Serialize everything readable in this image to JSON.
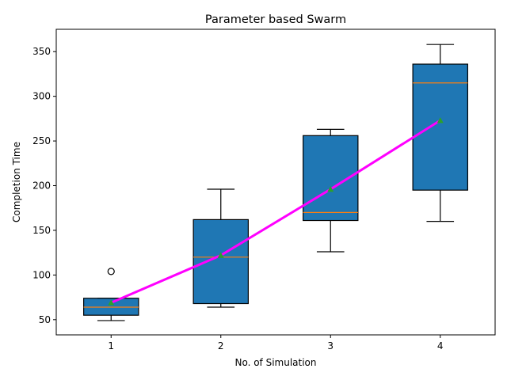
{
  "chart_data": {
    "type": "box",
    "title": "Parameter based Swarm",
    "xlabel": "No. of Simulation",
    "ylabel": "Completion Time",
    "categories": [
      "1",
      "2",
      "3",
      "4"
    ],
    "xlim": [
      0.5,
      4.5
    ],
    "ylim": [
      33,
      375
    ],
    "y_ticks": [
      50,
      100,
      150,
      200,
      250,
      300,
      350
    ],
    "grid": false,
    "legend": "none",
    "boxes": [
      {
        "x": 1,
        "whisker_low": 49,
        "q1": 55,
        "median": 64,
        "q3": 74,
        "whisker_high": 74,
        "mean": 69,
        "outliers": [
          104
        ]
      },
      {
        "x": 2,
        "whisker_low": 64,
        "q1": 68,
        "median": 120,
        "q3": 162,
        "whisker_high": 196,
        "mean": 122,
        "outliers": []
      },
      {
        "x": 3,
        "whisker_low": 126,
        "q1": 161,
        "median": 170,
        "q3": 256,
        "whisker_high": 263,
        "mean": 196,
        "outliers": []
      },
      {
        "x": 4,
        "whisker_low": 160,
        "q1": 195,
        "median": 315,
        "q3": 336,
        "whisker_high": 358,
        "mean": 273,
        "outliers": []
      }
    ],
    "mean_line": {
      "x": [
        1,
        2,
        3,
        4
      ],
      "y": [
        69,
        122,
        196,
        273
      ]
    },
    "colors": {
      "box_fill": "#1f77b4",
      "median": "#ff7f0e",
      "mean_marker": "#2ca02c",
      "mean_line": "#ff00ff",
      "edge": "#000000"
    }
  }
}
